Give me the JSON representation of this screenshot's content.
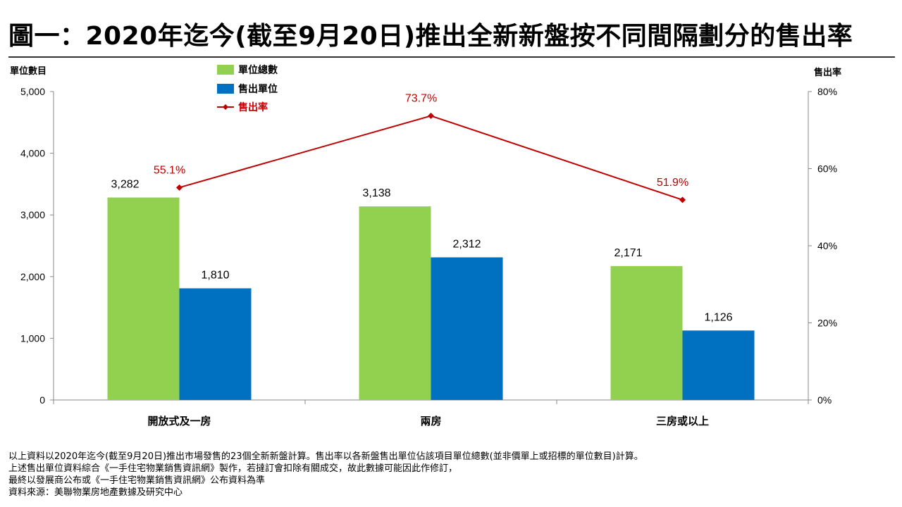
{
  "title": "圖一：2020年迄今(截至9月20日)推出全新新盤按不同間隔劃分的售出率",
  "colors": {
    "total": "#92d050",
    "sold": "#0070c0",
    "rate": "#c00000"
  },
  "chart_data": {
    "type": "bar",
    "categories": [
      "開放式及一房",
      "兩房",
      "三房或以上"
    ],
    "series": [
      {
        "name": "單位總數",
        "kind": "bar",
        "axis": "left",
        "values": [
          3282,
          3138,
          2171
        ],
        "labels": [
          "3,282",
          "3,138",
          "2,171"
        ]
      },
      {
        "name": "售出單位",
        "kind": "bar",
        "axis": "left",
        "values": [
          1810,
          2312,
          1126
        ],
        "labels": [
          "1,810",
          "2,312",
          "1,126"
        ]
      },
      {
        "name": "售出率",
        "kind": "line",
        "axis": "right",
        "values": [
          55.1,
          73.7,
          51.9
        ],
        "labels": [
          "55.1%",
          "73.7%",
          "51.9%"
        ]
      }
    ],
    "ylabel": "單位數目",
    "y2label": "售出率",
    "ylim": [
      0,
      5000
    ],
    "y2lim": [
      0,
      80
    ],
    "yticks": [
      0,
      1000,
      2000,
      3000,
      4000,
      5000
    ],
    "ytick_labels": [
      "0",
      "1,000",
      "2,000",
      "3,000",
      "4,000",
      "5,000"
    ],
    "y2ticks": [
      0,
      20,
      40,
      60,
      80
    ],
    "y2tick_labels": [
      "0%",
      "20%",
      "40%",
      "60%",
      "80%"
    ],
    "legend_position": "top-left"
  },
  "footnotes": [
    "以上資料以2020年迄今(截至9月20日)推出市場發售的23個全新新盤計算。售出率以各新盤售出單位佔該項目單位總數(並非價單上或招標的單位數目)計算。",
    "上述售出單位資料綜合《一手住宅物業銷售資訊網》製作，若撻訂會扣除有關成交，故此數據可能因此作修訂，",
    "最終以發展商公布或《一手住宅物業銷售資訊網》公布資料為準",
    "資料來源：美聯物業房地產數據及研究中心"
  ]
}
